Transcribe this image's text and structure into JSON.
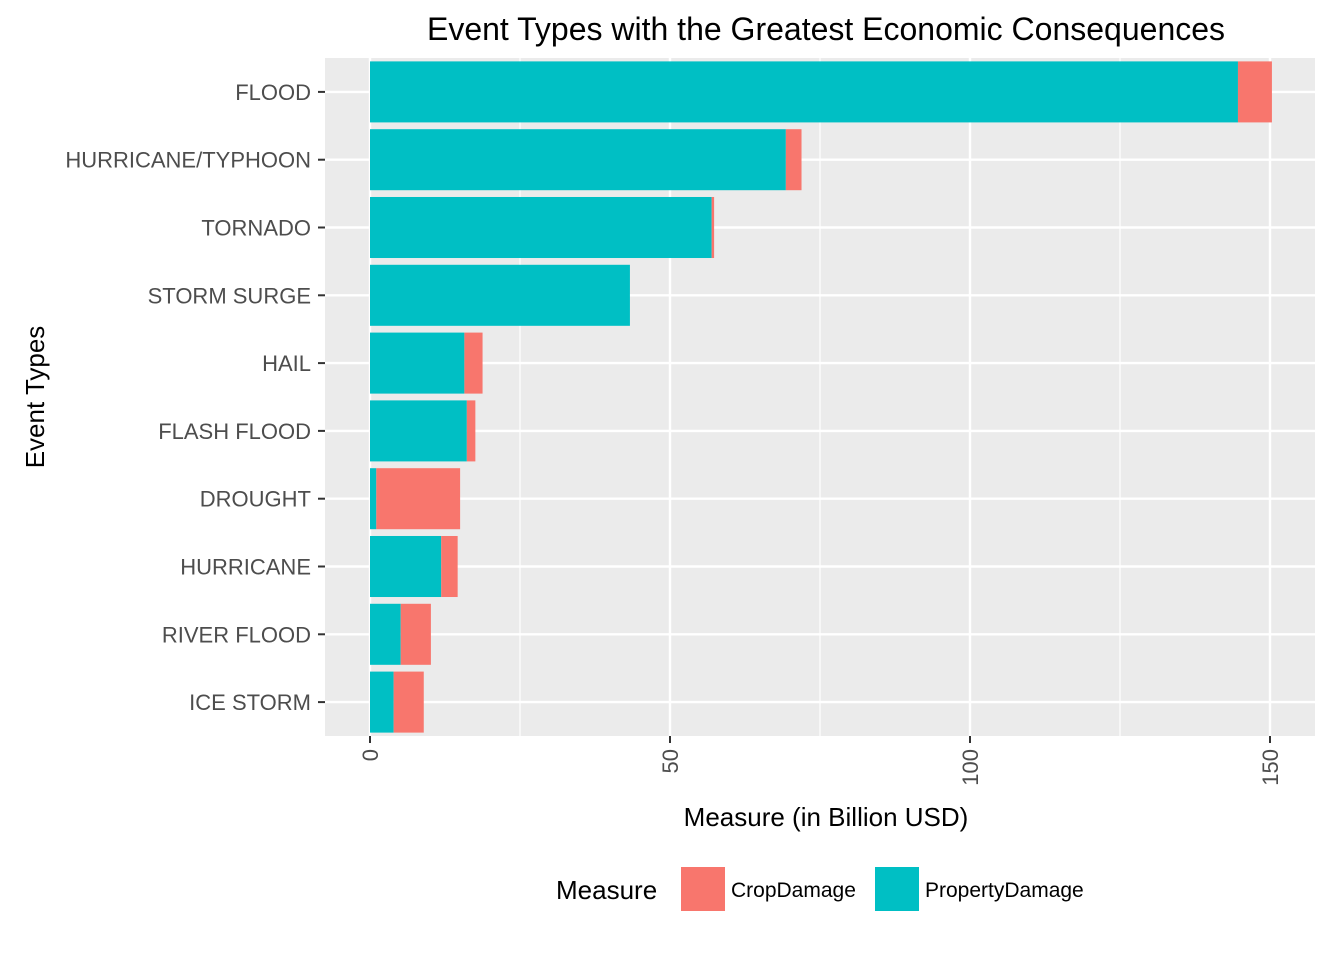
{
  "chart_data": {
    "type": "bar",
    "orientation": "horizontal",
    "stacked": true,
    "title": "Event Types with the Greatest Economic Consequences",
    "xlabel": "Measure (in Billion USD)",
    "ylabel": "Event Types",
    "categories": [
      "FLOOD",
      "HURRICANE/TYPHOON",
      "TORNADO",
      "STORM SURGE",
      "HAIL",
      "FLASH FLOOD",
      "DROUGHT",
      "HURRICANE",
      "RIVER FLOOD",
      "ICE STORM"
    ],
    "series": [
      {
        "name": "PropertyDamage",
        "color": "#00BFC4",
        "values": [
          144.66,
          69.31,
          56.94,
          43.32,
          15.73,
          16.14,
          1.05,
          11.87,
          5.12,
          3.94
        ]
      },
      {
        "name": "CropDamage",
        "color": "#F8766D",
        "values": [
          5.66,
          2.61,
          0.41,
          0.0,
          3.03,
          1.42,
          13.97,
          2.74,
          5.03,
          5.02
        ]
      }
    ],
    "xlim": [
      -7.5,
      157.5
    ],
    "x_ticks": [
      0,
      50,
      100,
      150
    ],
    "x_tick_labels": [
      "0",
      "50",
      "100",
      "150"
    ],
    "x_minor_ticks": [
      25,
      75,
      125
    ],
    "grid": true,
    "panel_background": "#EBEBEB",
    "grid_color": "#FFFFFF",
    "legend": {
      "title": "Measure",
      "position": "bottom",
      "entries": [
        {
          "label": "CropDamage",
          "color": "#F8766D"
        },
        {
          "label": "PropertyDamage",
          "color": "#00BFC4"
        }
      ]
    }
  }
}
